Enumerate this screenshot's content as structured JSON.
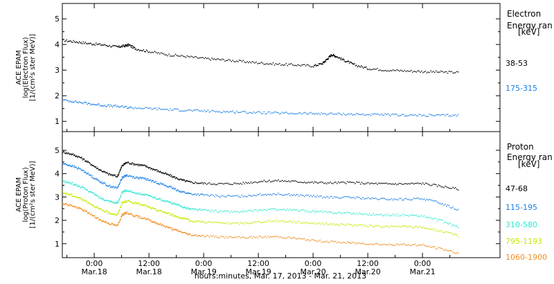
{
  "chart_data": [
    {
      "type": "scatter",
      "ylabel_lines": [
        "ACE EPAM",
        "log(Electron Flux)",
        "[1/(cm²s ster MeV)]"
      ],
      "legend_title_lines": [
        "Electron",
        "Energy ran",
        "[keV]"
      ],
      "ylim": [
        0.6,
        5.6
      ],
      "yticks": [
        1,
        2,
        3,
        4,
        5
      ],
      "x_range_hours": [
        -7,
        89
      ],
      "series": [
        {
          "name": "38-53",
          "color": "#000000",
          "points": [
            [
              -7,
              4.18
            ],
            [
              -4,
              4.12
            ],
            [
              -1,
              4.05
            ],
            [
              2,
              4.0
            ],
            [
              5,
              3.92
            ],
            [
              6.5,
              3.96
            ],
            [
              7.5,
              4.0
            ],
            [
              9,
              3.85
            ],
            [
              12,
              3.74
            ],
            [
              16,
              3.62
            ],
            [
              20,
              3.55
            ],
            [
              24,
              3.47
            ],
            [
              28,
              3.42
            ],
            [
              32,
              3.36
            ],
            [
              36,
              3.3
            ],
            [
              40,
              3.25
            ],
            [
              44,
              3.22
            ],
            [
              48,
              3.18
            ],
            [
              50,
              3.28
            ],
            [
              51,
              3.45
            ],
            [
              52,
              3.62
            ],
            [
              53,
              3.55
            ],
            [
              55,
              3.38
            ],
            [
              57,
              3.22
            ],
            [
              60,
              3.08
            ],
            [
              64,
              3.02
            ],
            [
              68,
              2.99
            ],
            [
              72,
              2.96
            ],
            [
              76,
              2.94
            ],
            [
              80,
              2.93
            ]
          ]
        },
        {
          "name": "175-315",
          "color": "#1a7ee6",
          "points": [
            [
              -7,
              1.85
            ],
            [
              -4,
              1.78
            ],
            [
              -1,
              1.7
            ],
            [
              2,
              1.64
            ],
            [
              5,
              1.6
            ],
            [
              8,
              1.55
            ],
            [
              12,
              1.52
            ],
            [
              16,
              1.48
            ],
            [
              20,
              1.45
            ],
            [
              24,
              1.42
            ],
            [
              28,
              1.4
            ],
            [
              32,
              1.38
            ],
            [
              36,
              1.36
            ],
            [
              40,
              1.34
            ],
            [
              44,
              1.33
            ],
            [
              48,
              1.32
            ],
            [
              52,
              1.31
            ],
            [
              56,
              1.3
            ],
            [
              60,
              1.28
            ],
            [
              64,
              1.27
            ],
            [
              68,
              1.26
            ],
            [
              72,
              1.25
            ],
            [
              76,
              1.25
            ],
            [
              80,
              1.25
            ]
          ]
        }
      ]
    },
    {
      "type": "scatter",
      "ylabel_lines": [
        "ACE EPAM",
        "log(Proton Flux)",
        "[1/(cm²s ster MeV)]"
      ],
      "legend_title_lines": [
        "Proton",
        "Energy ran",
        "[keV]"
      ],
      "ylim": [
        0.4,
        5.8
      ],
      "yticks": [
        1,
        2,
        3,
        4,
        5
      ],
      "x_range_hours": [
        -7,
        89
      ],
      "series": [
        {
          "name": "47-68",
          "color": "#000000",
          "points": [
            [
              -7,
              4.95
            ],
            [
              -5,
              4.85
            ],
            [
              -3,
              4.7
            ],
            [
              -1,
              4.45
            ],
            [
              1,
              4.2
            ],
            [
              3,
              4.0
            ],
            [
              5,
              3.9
            ],
            [
              6,
              4.35
            ],
            [
              7,
              4.5
            ],
            [
              9,
              4.42
            ],
            [
              11,
              4.35
            ],
            [
              13,
              4.2
            ],
            [
              15,
              4.05
            ],
            [
              17,
              3.9
            ],
            [
              19,
              3.75
            ],
            [
              21,
              3.65
            ],
            [
              24,
              3.6
            ],
            [
              28,
              3.58
            ],
            [
              32,
              3.6
            ],
            [
              36,
              3.68
            ],
            [
              40,
              3.72
            ],
            [
              44,
              3.68
            ],
            [
              48,
              3.64
            ],
            [
              52,
              3.62
            ],
            [
              56,
              3.64
            ],
            [
              60,
              3.6
            ],
            [
              64,
              3.58
            ],
            [
              68,
              3.58
            ],
            [
              72,
              3.6
            ],
            [
              76,
              3.48
            ],
            [
              80,
              3.35
            ]
          ]
        },
        {
          "name": "115-195",
          "color": "#1a7ee6",
          "points": [
            [
              -7,
              4.45
            ],
            [
              -5,
              4.35
            ],
            [
              -3,
              4.2
            ],
            [
              -1,
              3.95
            ],
            [
              1,
              3.7
            ],
            [
              3,
              3.5
            ],
            [
              5,
              3.4
            ],
            [
              6,
              3.85
            ],
            [
              7,
              3.95
            ],
            [
              9,
              3.85
            ],
            [
              11,
              3.8
            ],
            [
              13,
              3.68
            ],
            [
              15,
              3.55
            ],
            [
              17,
              3.4
            ],
            [
              19,
              3.25
            ],
            [
              21,
              3.15
            ],
            [
              24,
              3.1
            ],
            [
              28,
              3.05
            ],
            [
              32,
              3.05
            ],
            [
              36,
              3.12
            ],
            [
              40,
              3.15
            ],
            [
              44,
              3.1
            ],
            [
              48,
              3.05
            ],
            [
              52,
              3.0
            ],
            [
              56,
              3.0
            ],
            [
              60,
              2.95
            ],
            [
              64,
              2.92
            ],
            [
              68,
              2.92
            ],
            [
              72,
              2.95
            ],
            [
              76,
              2.75
            ],
            [
              80,
              2.45
            ]
          ]
        },
        {
          "name": "310-580",
          "color": "#2ee6d0",
          "points": [
            [
              -7,
              3.7
            ],
            [
              -5,
              3.6
            ],
            [
              -3,
              3.45
            ],
            [
              -1,
              3.25
            ],
            [
              1,
              3.0
            ],
            [
              3,
              2.85
            ],
            [
              5,
              2.75
            ],
            [
              6,
              3.2
            ],
            [
              7,
              3.3
            ],
            [
              9,
              3.2
            ],
            [
              11,
              3.12
            ],
            [
              13,
              3.0
            ],
            [
              15,
              2.88
            ],
            [
              17,
              2.75
            ],
            [
              19,
              2.62
            ],
            [
              21,
              2.5
            ],
            [
              24,
              2.45
            ],
            [
              28,
              2.4
            ],
            [
              32,
              2.38
            ],
            [
              36,
              2.45
            ],
            [
              40,
              2.5
            ],
            [
              44,
              2.45
            ],
            [
              48,
              2.4
            ],
            [
              52,
              2.35
            ],
            [
              56,
              2.33
            ],
            [
              60,
              2.28
            ],
            [
              64,
              2.25
            ],
            [
              68,
              2.25
            ],
            [
              72,
              2.2
            ],
            [
              76,
              2.0
            ],
            [
              80,
              1.7
            ]
          ]
        },
        {
          "name": "795-1193",
          "color": "#c8e600",
          "points": [
            [
              -7,
              3.2
            ],
            [
              -5,
              3.1
            ],
            [
              -3,
              2.95
            ],
            [
              -1,
              2.75
            ],
            [
              1,
              2.5
            ],
            [
              3,
              2.35
            ],
            [
              5,
              2.25
            ],
            [
              6,
              2.75
            ],
            [
              7,
              2.85
            ],
            [
              9,
              2.75
            ],
            [
              11,
              2.65
            ],
            [
              13,
              2.5
            ],
            [
              15,
              2.38
            ],
            [
              17,
              2.25
            ],
            [
              19,
              2.12
            ],
            [
              21,
              2.0
            ],
            [
              24,
              1.95
            ],
            [
              28,
              1.9
            ],
            [
              32,
              1.88
            ],
            [
              36,
              1.95
            ],
            [
              40,
              2.0
            ],
            [
              44,
              1.95
            ],
            [
              48,
              1.9
            ],
            [
              52,
              1.85
            ],
            [
              56,
              1.83
            ],
            [
              60,
              1.78
            ],
            [
              64,
              1.75
            ],
            [
              68,
              1.75
            ],
            [
              72,
              1.72
            ],
            [
              76,
              1.55
            ],
            [
              80,
              1.35
            ]
          ]
        },
        {
          "name": "1060-1900",
          "color": "#f08c1e",
          "points": [
            [
              -7,
              2.75
            ],
            [
              -5,
              2.65
            ],
            [
              -3,
              2.5
            ],
            [
              -1,
              2.3
            ],
            [
              1,
              2.05
            ],
            [
              3,
              1.9
            ],
            [
              5,
              1.78
            ],
            [
              6,
              2.25
            ],
            [
              7,
              2.35
            ],
            [
              9,
              2.2
            ],
            [
              11,
              2.1
            ],
            [
              13,
              1.95
            ],
            [
              15,
              1.8
            ],
            [
              17,
              1.65
            ],
            [
              19,
              1.52
            ],
            [
              21,
              1.4
            ],
            [
              24,
              1.35
            ],
            [
              28,
              1.3
            ],
            [
              32,
              1.28
            ],
            [
              36,
              1.3
            ],
            [
              40,
              1.32
            ],
            [
              44,
              1.25
            ],
            [
              48,
              1.15
            ],
            [
              52,
              1.1
            ],
            [
              56,
              1.05
            ],
            [
              60,
              1.02
            ],
            [
              64,
              0.98
            ],
            [
              68,
              0.98
            ],
            [
              72,
              0.95
            ],
            [
              76,
              0.8
            ],
            [
              80,
              0.6
            ]
          ]
        }
      ]
    }
  ],
  "x_axis": {
    "ticks": [
      {
        "hour": 0,
        "time": "0:00",
        "date": "Mar.18"
      },
      {
        "hour": 12,
        "time": "12:00",
        "date": "Mar.18"
      },
      {
        "hour": 24,
        "time": "0:00",
        "date": "Mar.19"
      },
      {
        "hour": 36,
        "time": "12:00",
        "date": "Mar.19"
      },
      {
        "hour": 48,
        "time": "0:00",
        "date": "Mar.20"
      },
      {
        "hour": 60,
        "time": "12:00",
        "date": "Mar.20"
      },
      {
        "hour": 72,
        "time": "0:00",
        "date": "Mar.21"
      }
    ],
    "label": "hours:minutes, Mar. 17, 2013 - Mar. 21, 2013"
  }
}
